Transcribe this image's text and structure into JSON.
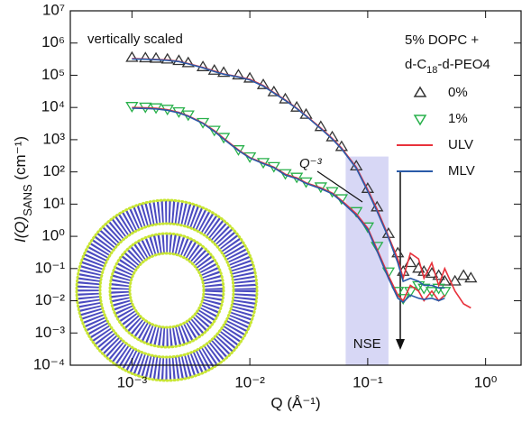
{
  "chart_data": {
    "type": "scatter-line",
    "x_label": "Q (Å⁻¹)",
    "y_label": [
      "I(Q)",
      "SANS",
      " (cm⁻¹)"
    ],
    "xlim": [
      0.0003,
      2
    ],
    "ylim": [
      0.0001,
      10000000
    ],
    "log_x": true,
    "log_y": true,
    "xticks": [
      {
        "value": 0.001,
        "label": "10⁻³"
      },
      {
        "value": 0.01,
        "label": "10⁻²"
      },
      {
        "value": 0.1,
        "label": "10⁻¹"
      },
      {
        "value": 1,
        "label": "10⁰"
      }
    ],
    "yticks": [
      {
        "value": 0.0001,
        "label": "10⁻⁴"
      },
      {
        "value": 0.001,
        "label": "10⁻³"
      },
      {
        "value": 0.01,
        "label": "10⁻²"
      },
      {
        "value": 0.1,
        "label": "10⁻¹"
      },
      {
        "value": 1,
        "label": "10⁰"
      },
      {
        "value": 10,
        "label": "10¹"
      },
      {
        "value": 100,
        "label": "10²"
      },
      {
        "value": 1000,
        "label": "10³"
      },
      {
        "value": 10000,
        "label": "10⁴"
      },
      {
        "value": 100000,
        "label": "10⁵"
      },
      {
        "value": 1000000,
        "label": "10⁶"
      },
      {
        "value": 10000000,
        "label": "10⁷"
      }
    ],
    "legend_title": [
      "5% DOPC +",
      "d-C",
      "18",
      "-d-PEO4"
    ],
    "legend_position": "upper right",
    "annotations": {
      "scaled": "vertically scaled",
      "slope": "Q⁻³",
      "band": {
        "text": "NSE",
        "xlim": [
          0.065,
          0.15
        ],
        "ymax": 300
      }
    },
    "x": [
      0.001,
      0.0013,
      0.0016,
      0.002,
      0.0025,
      0.003,
      0.004,
      0.005,
      0.006,
      0.008,
      0.01,
      0.013,
      0.016,
      0.02,
      0.025,
      0.03,
      0.04,
      0.05,
      0.06,
      0.08,
      0.1,
      0.12,
      0.15,
      0.18,
      0.2,
      0.23,
      0.27,
      0.3,
      0.35,
      0.4,
      0.45,
      0.55,
      0.65,
      0.75
    ],
    "series": [
      {
        "name": "0%",
        "color": "#333333",
        "marker": "triangle-up",
        "values": [
          350000,
          340000,
          330000,
          310000,
          280000,
          240000,
          180000,
          140000,
          120000,
          100000,
          80000,
          50000,
          30000,
          18000,
          10000,
          6000,
          2500,
          1200,
          600,
          150,
          30,
          8,
          1.2,
          0.3,
          0.08,
          0.15,
          0.1,
          0.08,
          0.07,
          0.06,
          0.04,
          0.04,
          0.06,
          0.05
        ]
      },
      {
        "name": "1%",
        "color": "#27b04a",
        "marker": "triangle-down",
        "values": [
          11000,
          10500,
          10000,
          9000,
          7500,
          6000,
          3500,
          2000,
          1200,
          500,
          300,
          200,
          150,
          90,
          70,
          50,
          35,
          25,
          15,
          6,
          2,
          0.5,
          0.08,
          0.02,
          0.012,
          0.02,
          0.03,
          0.025,
          0.02,
          0.025,
          0.02,
          null,
          null,
          null
        ]
      },
      {
        "name": "ULV",
        "color": "#e8323c",
        "marker": "line",
        "values": [
          [
            330000,
            320000,
            310000,
            300000,
            270000,
            230000,
            175000,
            135000,
            110000,
            90000,
            75000,
            48000,
            29000,
            17000,
            9500,
            5600,
            2300,
            1100,
            550,
            140,
            28,
            7,
            1,
            0.2,
            0.05,
            0.3,
            0.2,
            0.05,
            0.15,
            0.03,
            0.1,
            0.02,
            0.008,
            0.006
          ],
          [
            10000,
            9800,
            9500,
            8500,
            7000,
            5500,
            3300,
            1900,
            1100,
            480,
            280,
            190,
            140,
            85,
            65,
            46,
            32,
            22,
            13,
            5,
            1.8,
            0.4,
            0.06,
            0.015,
            0.01,
            0.03,
            0.02,
            0.01,
            0.02,
            0.01,
            0.015,
            null,
            null,
            null
          ]
        ]
      },
      {
        "name": "MLV",
        "color": "#2a5aa8",
        "marker": "line",
        "values": [
          [
            320000,
            315000,
            305000,
            290000,
            265000,
            225000,
            170000,
            130000,
            108000,
            88000,
            72000,
            46000,
            28000,
            16500,
            9200,
            5400,
            2200,
            1050,
            520,
            130,
            25,
            6,
            0.9,
            0.15,
            0.04,
            0.05,
            0.04,
            0.03,
            0.03,
            0.025,
            0.025,
            null,
            null,
            null
          ],
          [
            9500,
            9300,
            9000,
            8200,
            6800,
            5300,
            3200,
            1800,
            1050,
            460,
            270,
            180,
            135,
            80,
            62,
            44,
            30,
            21,
            12,
            4.5,
            1.6,
            0.35,
            0.05,
            0.012,
            0.009,
            0.015,
            0.012,
            0.011,
            0.012,
            0.01,
            0.012,
            null,
            null,
            null
          ]
        ]
      }
    ]
  }
}
